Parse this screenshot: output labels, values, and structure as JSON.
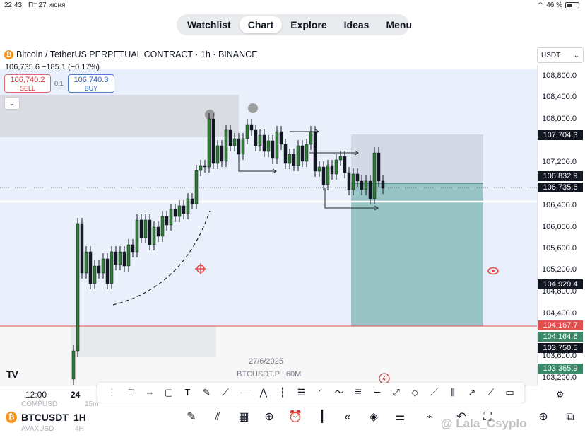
{
  "status_bar": {
    "time": "22:43",
    "date": "Пт 27 июня",
    "battery": "46 %"
  },
  "tabs": [
    "Watchlist",
    "Chart",
    "Explore",
    "Ideas",
    "Menu"
  ],
  "active_tab": "Chart",
  "header": {
    "symbol_title": "Bitcoin / TetherUS PERPETUAL CONTRACT · 1h · BINANCE",
    "price_line": "106,735.6  −185.1 (−0.17%)",
    "sell_price": "106,740.2",
    "sell_label": "SELL",
    "spread": "0.1",
    "buy_price": "106,740.3",
    "buy_label": "BUY"
  },
  "currency": "USDT",
  "price_axis": [
    "108,800.0",
    "108,400.0",
    "108,000.0",
    "107,200.0",
    "106,400.0",
    "106,000.0",
    "105,600.0",
    "105,200.0",
    "104,800.0",
    "104,400.0",
    "103,600.0",
    "103,200.0"
  ],
  "price_tags": {
    "t1": "107,704.3",
    "t2": "106,832.9",
    "t3": "106,735.6",
    "t4": "104,929.4",
    "t5": "104,167.7",
    "t6": "104,164.6",
    "t7": "103,750.5",
    "t8": "103,365.9"
  },
  "colors": {
    "up": "#26a69a",
    "candle_up": "#2e7d32",
    "down": "#131722",
    "target_zone": "#8fbfbf",
    "stop_line": "#e05050"
  },
  "chart_watermark": {
    "date": "27/6/2025",
    "symbol": "BTCUSDT.P | 60M"
  },
  "time_axis": {
    "t1": "12:00",
    "t2": "24"
  },
  "bottom": {
    "ticker": "BTCUSDT",
    "ticker_ghost_1": "COMPUSD",
    "ticker_ghost_2": "AVAXUSD",
    "timeframe": "1H",
    "tf_ghost": "4H",
    "tf_ghost2": "15m",
    "watermark": "@ Lala_Csyplo"
  }
}
